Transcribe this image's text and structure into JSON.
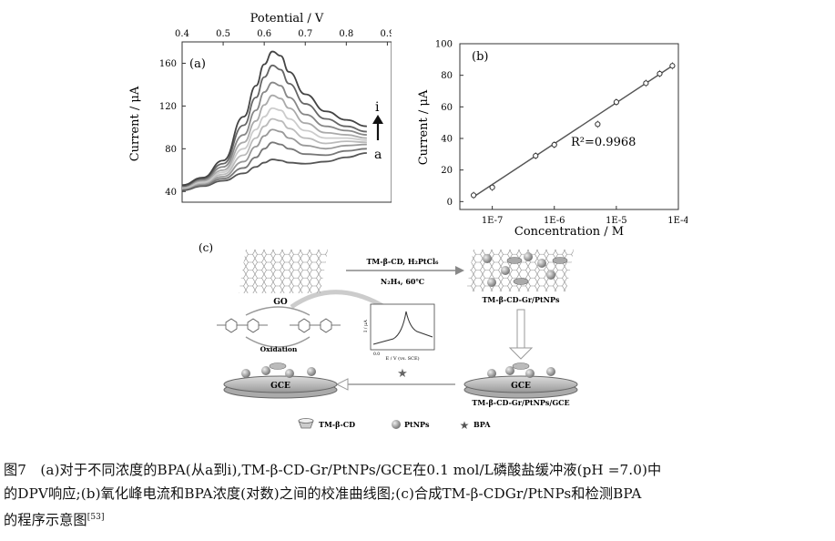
{
  "chart_data": [
    {
      "type": "line",
      "panel_label": "(a)",
      "xlabel": "Potential / V",
      "ylabel": "Current / μA",
      "x_ticks": [
        "0.4",
        "0.5",
        "0.6",
        "0.7",
        "0.8",
        "0.9"
      ],
      "y_ticks": [
        "40",
        "80",
        "120",
        "160"
      ],
      "xlim": [
        0.4,
        0.9
      ],
      "ylim": [
        30,
        180
      ],
      "x_axis_position": "top",
      "series_labels": {
        "start": "a",
        "end": "i"
      },
      "peak_potential": 0.62,
      "peak_currents": [
        70,
        86,
        98,
        108,
        118,
        130,
        142,
        158,
        171
      ],
      "series": [
        {
          "name": "a",
          "color": "#555555",
          "x": [
            0.4,
            0.45,
            0.5,
            0.55,
            0.58,
            0.6,
            0.62,
            0.64,
            0.66,
            0.7,
            0.75,
            0.8,
            0.85
          ],
          "y": [
            41,
            45,
            50,
            57,
            63,
            67,
            70,
            69,
            67,
            66,
            68,
            72,
            76
          ]
        },
        {
          "name": "b",
          "color": "#777777",
          "x": [
            0.4,
            0.45,
            0.5,
            0.55,
            0.58,
            0.6,
            0.62,
            0.64,
            0.66,
            0.7,
            0.75,
            0.8,
            0.85
          ],
          "y": [
            42,
            46,
            52,
            62,
            72,
            80,
            86,
            84,
            80,
            75,
            74,
            78,
            80
          ]
        },
        {
          "name": "c",
          "color": "#999999",
          "x": [
            0.4,
            0.45,
            0.5,
            0.55,
            0.58,
            0.6,
            0.62,
            0.64,
            0.66,
            0.7,
            0.75,
            0.8,
            0.85
          ],
          "y": [
            43,
            47,
            54,
            68,
            82,
            92,
            98,
            96,
            90,
            83,
            80,
            83,
            84
          ]
        },
        {
          "name": "d",
          "color": "#bbbbbb",
          "x": [
            0.4,
            0.45,
            0.5,
            0.55,
            0.58,
            0.6,
            0.62,
            0.64,
            0.66,
            0.7,
            0.75,
            0.8,
            0.85
          ],
          "y": [
            43,
            48,
            56,
            74,
            90,
            101,
            108,
            106,
            99,
            90,
            85,
            87,
            86
          ]
        },
        {
          "name": "e",
          "color": "#cccccc",
          "x": [
            0.4,
            0.45,
            0.5,
            0.55,
            0.58,
            0.6,
            0.62,
            0.64,
            0.66,
            0.7,
            0.75,
            0.8,
            0.85
          ],
          "y": [
            44,
            49,
            58,
            80,
            98,
            110,
            118,
            116,
            108,
            97,
            90,
            90,
            88
          ]
        },
        {
          "name": "f",
          "color": "#aaaaaa",
          "x": [
            0.4,
            0.45,
            0.5,
            0.55,
            0.58,
            0.6,
            0.62,
            0.64,
            0.66,
            0.7,
            0.75,
            0.8,
            0.85
          ],
          "y": [
            44,
            50,
            60,
            86,
            106,
            121,
            130,
            127,
            118,
            104,
            95,
            93,
            90
          ]
        },
        {
          "name": "g",
          "color": "#888888",
          "x": [
            0.4,
            0.45,
            0.5,
            0.55,
            0.58,
            0.6,
            0.62,
            0.64,
            0.66,
            0.7,
            0.75,
            0.8,
            0.85
          ],
          "y": [
            45,
            51,
            63,
            93,
            116,
            133,
            142,
            139,
            128,
            112,
            101,
            97,
            93
          ]
        },
        {
          "name": "h",
          "color": "#666666",
          "x": [
            0.4,
            0.45,
            0.5,
            0.55,
            0.58,
            0.6,
            0.62,
            0.64,
            0.66,
            0.7,
            0.75,
            0.8,
            0.85
          ],
          "y": [
            45,
            52,
            66,
            102,
            128,
            147,
            158,
            154,
            141,
            122,
            108,
            101,
            96
          ]
        },
        {
          "name": "i",
          "color": "#444444",
          "x": [
            0.4,
            0.45,
            0.5,
            0.55,
            0.58,
            0.6,
            0.62,
            0.64,
            0.66,
            0.7,
            0.75,
            0.8,
            0.85
          ],
          "y": [
            46,
            53,
            69,
            110,
            139,
            159,
            171,
            167,
            152,
            131,
            115,
            107,
            101
          ]
        }
      ]
    },
    {
      "type": "scatter",
      "panel_label": "(b)",
      "xlabel": "Concentration / M",
      "ylabel": "Current / μA",
      "x_scale": "log",
      "x_ticks": [
        "1E-7",
        "1E-6",
        "1E-5",
        "1E-4"
      ],
      "y_ticks": [
        "0",
        "20",
        "40",
        "60",
        "80",
        "100"
      ],
      "xlim": [
        3e-08,
        0.0001
      ],
      "ylim": [
        -5,
        100
      ],
      "annotation": "R²=0.9968",
      "fit_line": {
        "x": [
          5e-08,
          8e-05
        ],
        "y": [
          3,
          86
        ]
      },
      "points": {
        "x": [
          5e-08,
          1e-07,
          5e-07,
          1e-06,
          5e-06,
          1e-05,
          3e-05,
          5e-05,
          8e-05
        ],
        "y": [
          4,
          9,
          29,
          36,
          49,
          63,
          75,
          81,
          86
        ]
      }
    }
  ],
  "scheme": {
    "panel_label": "(c)",
    "go_label": "GO",
    "arrow1_top": "TM-β-CD, H₂PtCl₆",
    "arrow1_bottom": "N₂H₄, 60℃",
    "product_label": "TM-β-CD-Gr/PtNPs",
    "electrode_right_label": "GCE",
    "electrode_right_caption": "TM-β-CD-Gr/PtNPs/GCE",
    "electrode_left_label": "GCE",
    "oxidation_label": "Oxidation",
    "inset_ylabel": "I / μA",
    "inset_xlabel": "E / V (vs. SCE)",
    "inset_tick": "0.0",
    "legend": [
      {
        "symbol": "cyclodextrin-cone-icon",
        "label": "TM-β-CD"
      },
      {
        "symbol": "sphere-icon",
        "label": "PtNPs"
      },
      {
        "symbol": "star-icon",
        "label": "BPA"
      }
    ]
  },
  "caption": {
    "line1": "图7　(a)对于不同浓度的BPA(从a到i),TM-β-CD-Gr/PtNPs/GCE在0.1 mol/L磷酸盐缓冲液(pH =7.0)中",
    "line2": "的DPV响应;(b)氧化峰电流和BPA浓度(对数)之间的校准曲线图;(c)合成TM-β-CDGr/PtNPs和检测BPA",
    "line3": "的程序示意图",
    "ref": "[53]"
  }
}
